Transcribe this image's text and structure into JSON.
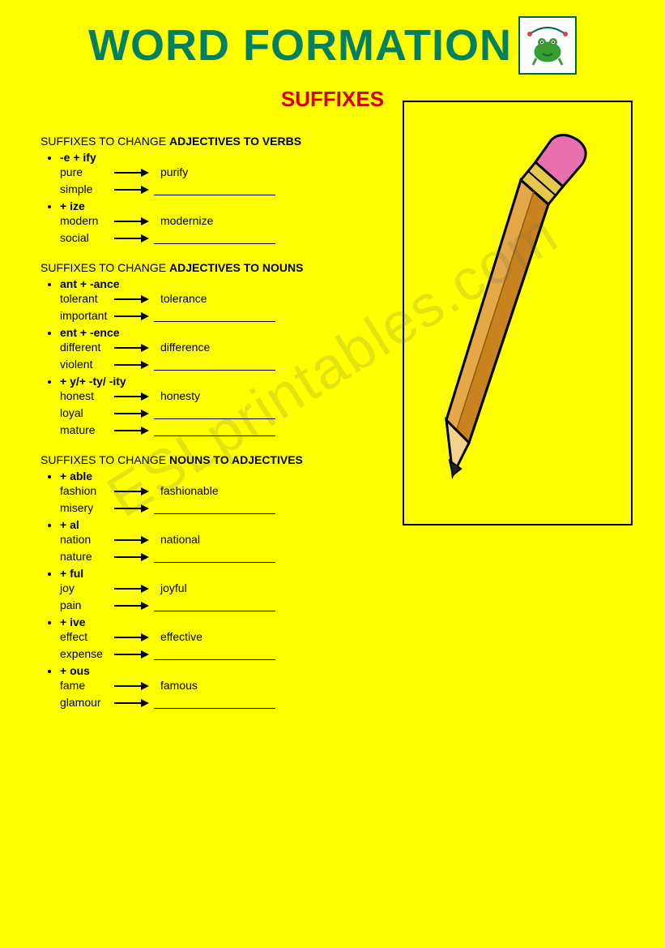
{
  "header": {
    "title": "WORD FORMATION",
    "subtitle": "SUFFIXES"
  },
  "watermark": "ESLprintables.com",
  "colors": {
    "background": "#ffff00",
    "title": "#008060",
    "subtitle": "#d40000",
    "text": "#000000",
    "frog_border": "#006644",
    "frog_body": "#3a9b2e",
    "pencil_wood": "#c9831e",
    "pencil_wood_light": "#e5a847",
    "pencil_tip_wood": "#f2d28c",
    "pencil_lead": "#222222",
    "pencil_ferrule": "#e8c84a",
    "pencil_eraser": "#e86fb0",
    "pencil_border": "#000000"
  },
  "sections": [
    {
      "title_prefix": "SUFFIXES TO CHANGE ",
      "title_bold": "ADJECTIVES TO VERBS",
      "rules": [
        {
          "label": "-e + ify",
          "examples": [
            {
              "word": "pure",
              "result": "purify"
            },
            {
              "word": "simple",
              "result": ""
            }
          ]
        },
        {
          "label": "+ ize",
          "examples": [
            {
              "word": "modern",
              "result": "modernize"
            },
            {
              "word": "social",
              "result": ""
            }
          ]
        }
      ]
    },
    {
      "title_prefix": "SUFFIXES TO CHANGE ",
      "title_bold": "ADJECTIVES TO NOUNS",
      "rules": [
        {
          "label": "ant + -ance",
          "examples": [
            {
              "word": "tolerant",
              "result": "tolerance"
            },
            {
              "word": "important",
              "result": ""
            }
          ]
        },
        {
          "label": "ent + -ence",
          "examples": [
            {
              "word": "different",
              "result": "difference"
            },
            {
              "word": "violent",
              "result": ""
            }
          ]
        },
        {
          "label": "+ y/+ -ty/ -ity",
          "examples": [
            {
              "word": "honest",
              "result": "honesty"
            },
            {
              "word": "loyal",
              "result": ""
            },
            {
              "word": "mature",
              "result": ""
            }
          ]
        }
      ]
    },
    {
      "title_prefix": "SUFFIXES TO CHANGE ",
      "title_bold": "NOUNS TO ADJECTIVES",
      "rules": [
        {
          "label": "+ able",
          "examples": [
            {
              "word": "fashion",
              "result": "fashionable"
            },
            {
              "word": "misery",
              "result": ""
            }
          ]
        },
        {
          "label": "+ al",
          "examples": [
            {
              "word": "nation",
              "result": "national"
            },
            {
              "word": "nature",
              "result": ""
            }
          ]
        },
        {
          "label": "+ ful",
          "examples": [
            {
              "word": "joy",
              "result": "joyful"
            },
            {
              "word": "pain",
              "result": ""
            }
          ]
        },
        {
          "label": "+ ive",
          "examples": [
            {
              "word": "effect",
              "result": "effective"
            },
            {
              "word": "expense",
              "result": ""
            }
          ]
        },
        {
          "label": "+ ous",
          "examples": [
            {
              "word": "fame",
              "result": "famous"
            },
            {
              "word": "glamour",
              "result": ""
            }
          ]
        }
      ]
    }
  ]
}
